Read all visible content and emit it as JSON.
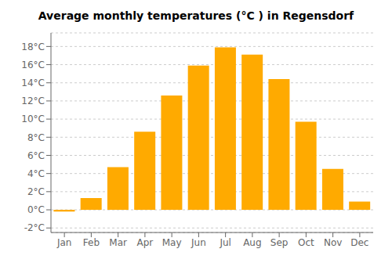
{
  "chart_data": {
    "type": "bar",
    "title": "Average monthly temperatures (°C ) in Regensdorf",
    "categories": [
      "Jan",
      "Feb",
      "Mar",
      "Apr",
      "May",
      "Jun",
      "Jul",
      "Aug",
      "Sep",
      "Oct",
      "Nov",
      "Dec"
    ],
    "values": [
      -0.2,
      1.3,
      4.7,
      8.6,
      12.6,
      15.9,
      17.9,
      17.1,
      14.4,
      9.7,
      4.5,
      0.9
    ],
    "color": "#FFAA00",
    "ylim": [
      -2.5,
      19.5
    ],
    "yticks": [
      {
        "value": -2,
        "label": "-2°C"
      },
      {
        "value": 0,
        "label": "0°C"
      },
      {
        "value": 2,
        "label": "2°C"
      },
      {
        "value": 4,
        "label": "4°C"
      },
      {
        "value": 6,
        "label": "6°C"
      },
      {
        "value": 8,
        "label": "8°C"
      },
      {
        "value": 10,
        "label": "10°C"
      },
      {
        "value": 12,
        "label": "12°C"
      },
      {
        "value": 14,
        "label": "14°C"
      },
      {
        "value": 16,
        "label": "16°C"
      },
      {
        "value": 18,
        "label": "18°C"
      }
    ],
    "grid": true
  }
}
